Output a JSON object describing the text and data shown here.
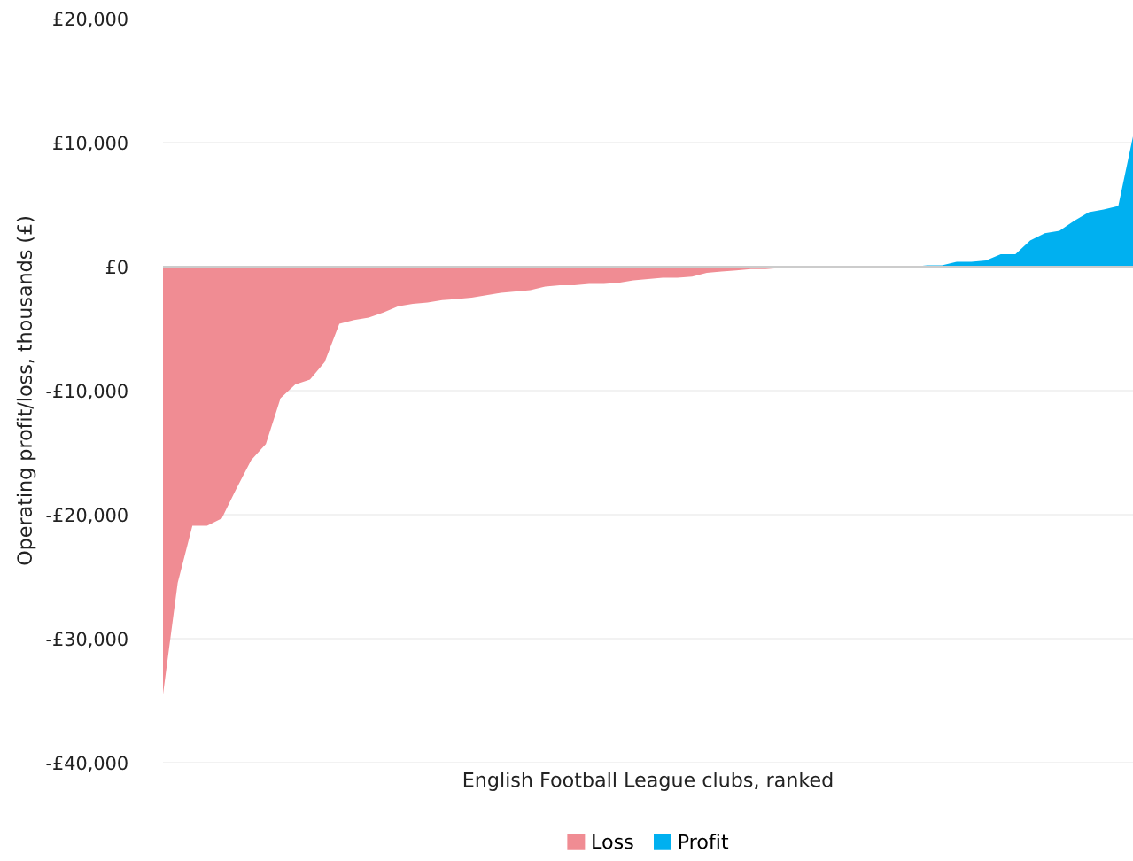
{
  "chart_data": {
    "type": "area",
    "xlabel": "English Football League clubs, ranked",
    "ylabel": "Operating profit/loss, thousands (£)",
    "categories": [
      null,
      null,
      null,
      null,
      null,
      null,
      null,
      null,
      null,
      null,
      null,
      null,
      null,
      null,
      null,
      null,
      null,
      null,
      null,
      null,
      null,
      null,
      null,
      null,
      null,
      null,
      null,
      null,
      null,
      null,
      null,
      null,
      null,
      null,
      null,
      null,
      null,
      null,
      null,
      null,
      null,
      null,
      null,
      null,
      null,
      null,
      null,
      null,
      null,
      null,
      null,
      null,
      null,
      null,
      null,
      null,
      null,
      null,
      null,
      null,
      null,
      null,
      null,
      null,
      null,
      null,
      null
    ],
    "series": [
      {
        "name": "Loss",
        "color": "#f08c93",
        "values": [
          -34500,
          -25500,
          -20900,
          -20900,
          -20300,
          -17900,
          -15600,
          -14300,
          -10600,
          -9500,
          -9100,
          -7700,
          -4600,
          -4300,
          -4100,
          -3700,
          -3200,
          -3000,
          -2900,
          -2700,
          -2600,
          -2500,
          -2300,
          -2100,
          -2000,
          -1900,
          -1600,
          -1500,
          -1500,
          -1400,
          -1400,
          -1300,
          -1100,
          -1000,
          -900,
          -900,
          -800,
          -500,
          -400,
          -300,
          -200,
          -200,
          -100,
          -100,
          0,
          0,
          0,
          0,
          0,
          0,
          0,
          0,
          0,
          0,
          0,
          0,
          0,
          0,
          0,
          0,
          0,
          0,
          0,
          0,
          0,
          0,
          0
        ]
      },
      {
        "name": "Profit",
        "color": "#00b0f0",
        "values": [
          0,
          0,
          0,
          0,
          0,
          0,
          0,
          0,
          0,
          0,
          0,
          0,
          0,
          0,
          0,
          0,
          0,
          0,
          0,
          0,
          0,
          0,
          0,
          0,
          0,
          0,
          0,
          0,
          0,
          0,
          0,
          0,
          0,
          0,
          0,
          0,
          0,
          0,
          0,
          0,
          0,
          0,
          0,
          0,
          0,
          0,
          0,
          0,
          0,
          0,
          0,
          0,
          100,
          100,
          400,
          400,
          500,
          1000,
          1000,
          2100,
          2700,
          2900,
          3700,
          4400,
          4600,
          4900,
          10500
        ]
      }
    ],
    "ylim": [
      -40000,
      20000
    ],
    "yticks": [
      {
        "value": -40000,
        "label": "-£40,000"
      },
      {
        "value": -30000,
        "label": "-£30,000"
      },
      {
        "value": -20000,
        "label": "-£20,000"
      },
      {
        "value": -10000,
        "label": "-£10,000"
      },
      {
        "value": 0,
        "label": "£0"
      },
      {
        "value": 10000,
        "label": "£10,000"
      },
      {
        "value": 20000,
        "label": "£20,000"
      }
    ],
    "ref_lines": [
      {
        "axis": "y",
        "value": 0,
        "color": "#cccccc"
      }
    ],
    "grid": "y",
    "legend": "bottom"
  }
}
